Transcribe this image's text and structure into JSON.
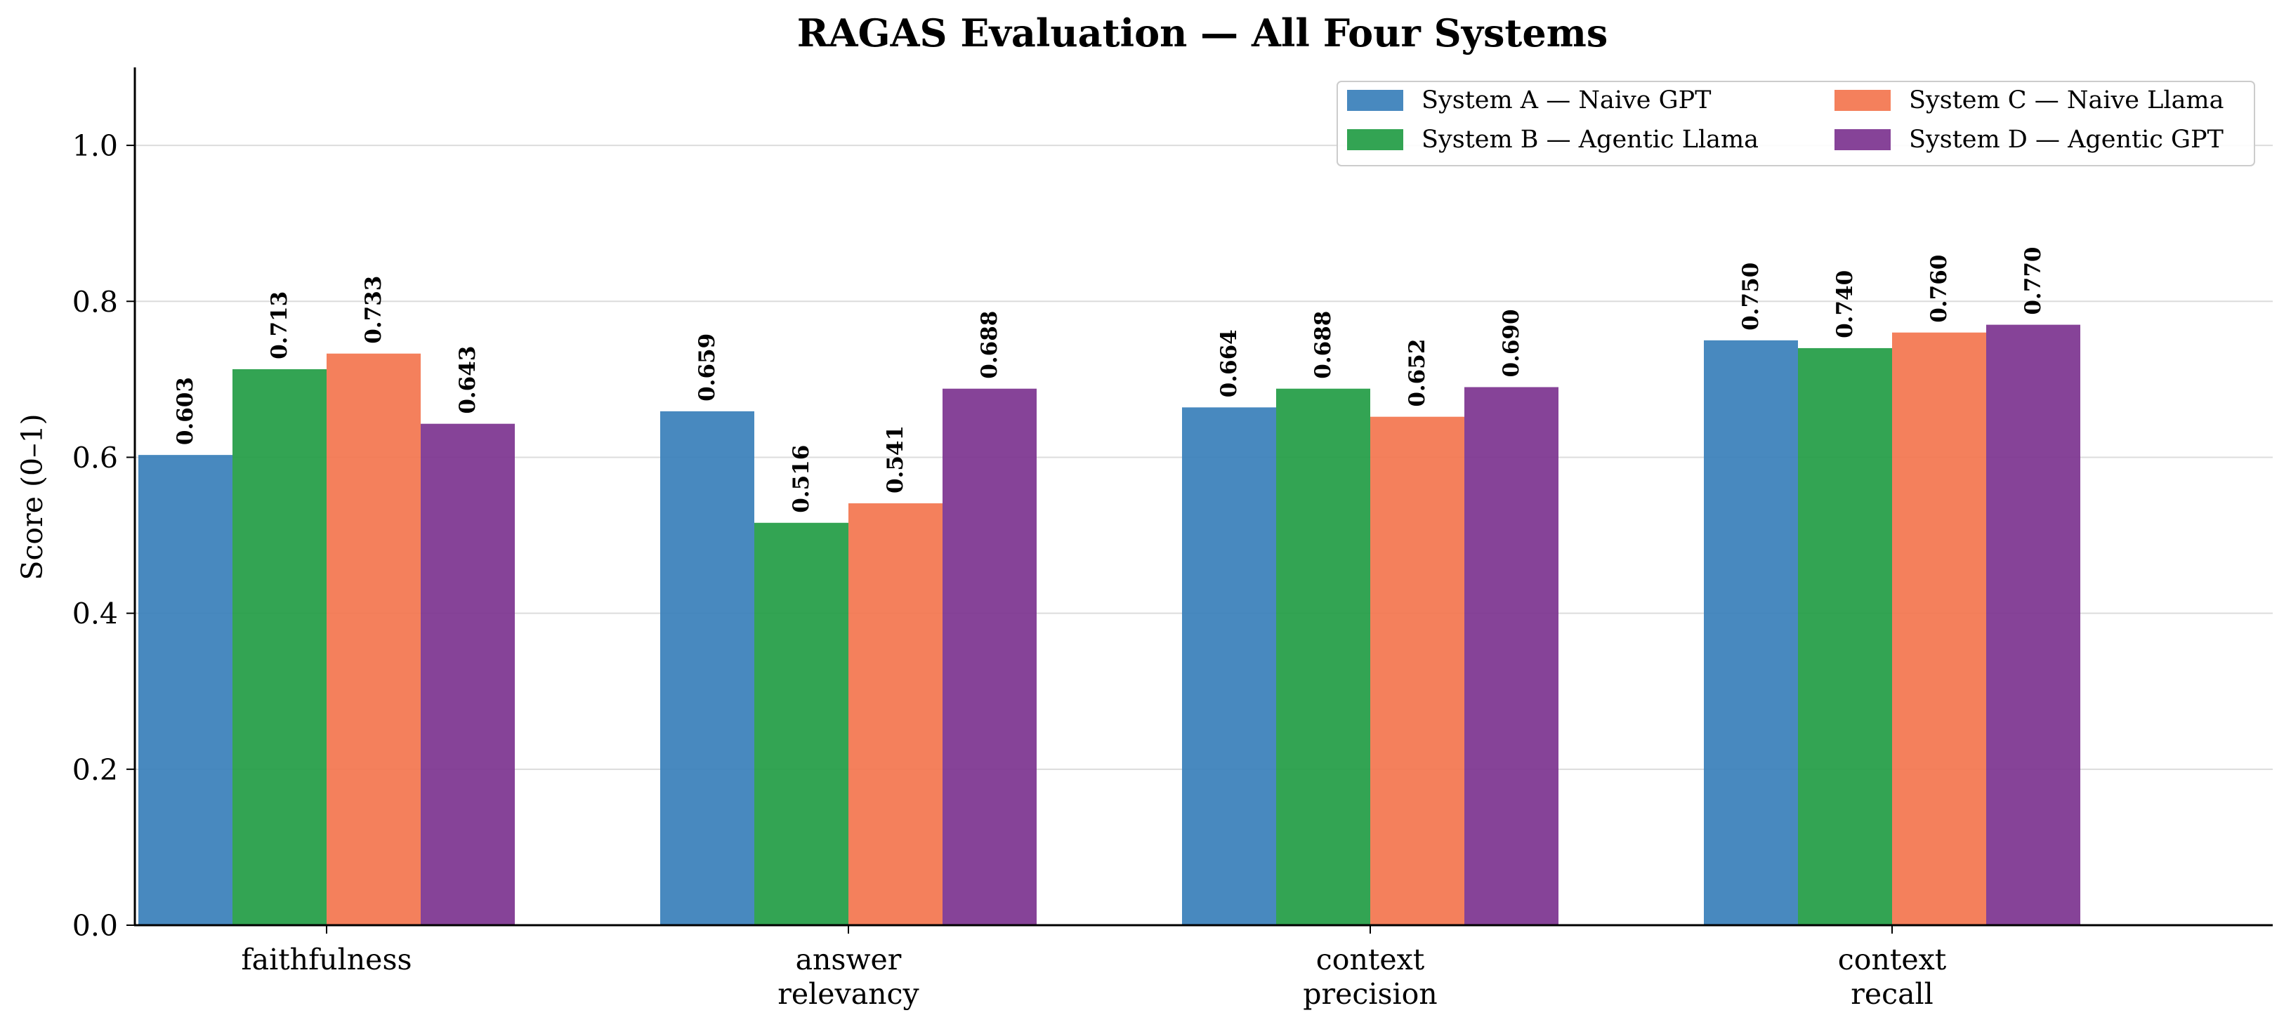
{
  "chart_data": {
    "type": "bar",
    "title": "RAGAS Evaluation — All Four Systems",
    "xlabel": "",
    "ylabel": "Score (0–1)",
    "ylim": [
      0,
      1.1
    ],
    "yticks": [
      "0.0",
      "0.2",
      "0.4",
      "0.6",
      "0.8",
      "1.0"
    ],
    "grid": "horizontal",
    "legend_position": "top-right",
    "categories": [
      [
        "faithfulness"
      ],
      [
        "answer",
        "relevancy"
      ],
      [
        "context",
        "precision"
      ],
      [
        "context",
        "recall"
      ]
    ],
    "series": [
      {
        "name": "System A — Naive GPT",
        "color": "#3a80ba",
        "values": [
          0.603,
          0.659,
          0.664,
          0.75
        ]
      },
      {
        "name": "System B — Agentic Llama",
        "color": "#239d46",
        "values": [
          0.713,
          0.516,
          0.688,
          0.74
        ]
      },
      {
        "name": "System C — Naive Llama",
        "color": "#f37650",
        "values": [
          0.733,
          0.541,
          0.652,
          0.76
        ]
      },
      {
        "name": "System D — Agentic GPT",
        "color": "#7d3590",
        "values": [
          0.643,
          0.688,
          0.69,
          0.77
        ]
      }
    ]
  }
}
